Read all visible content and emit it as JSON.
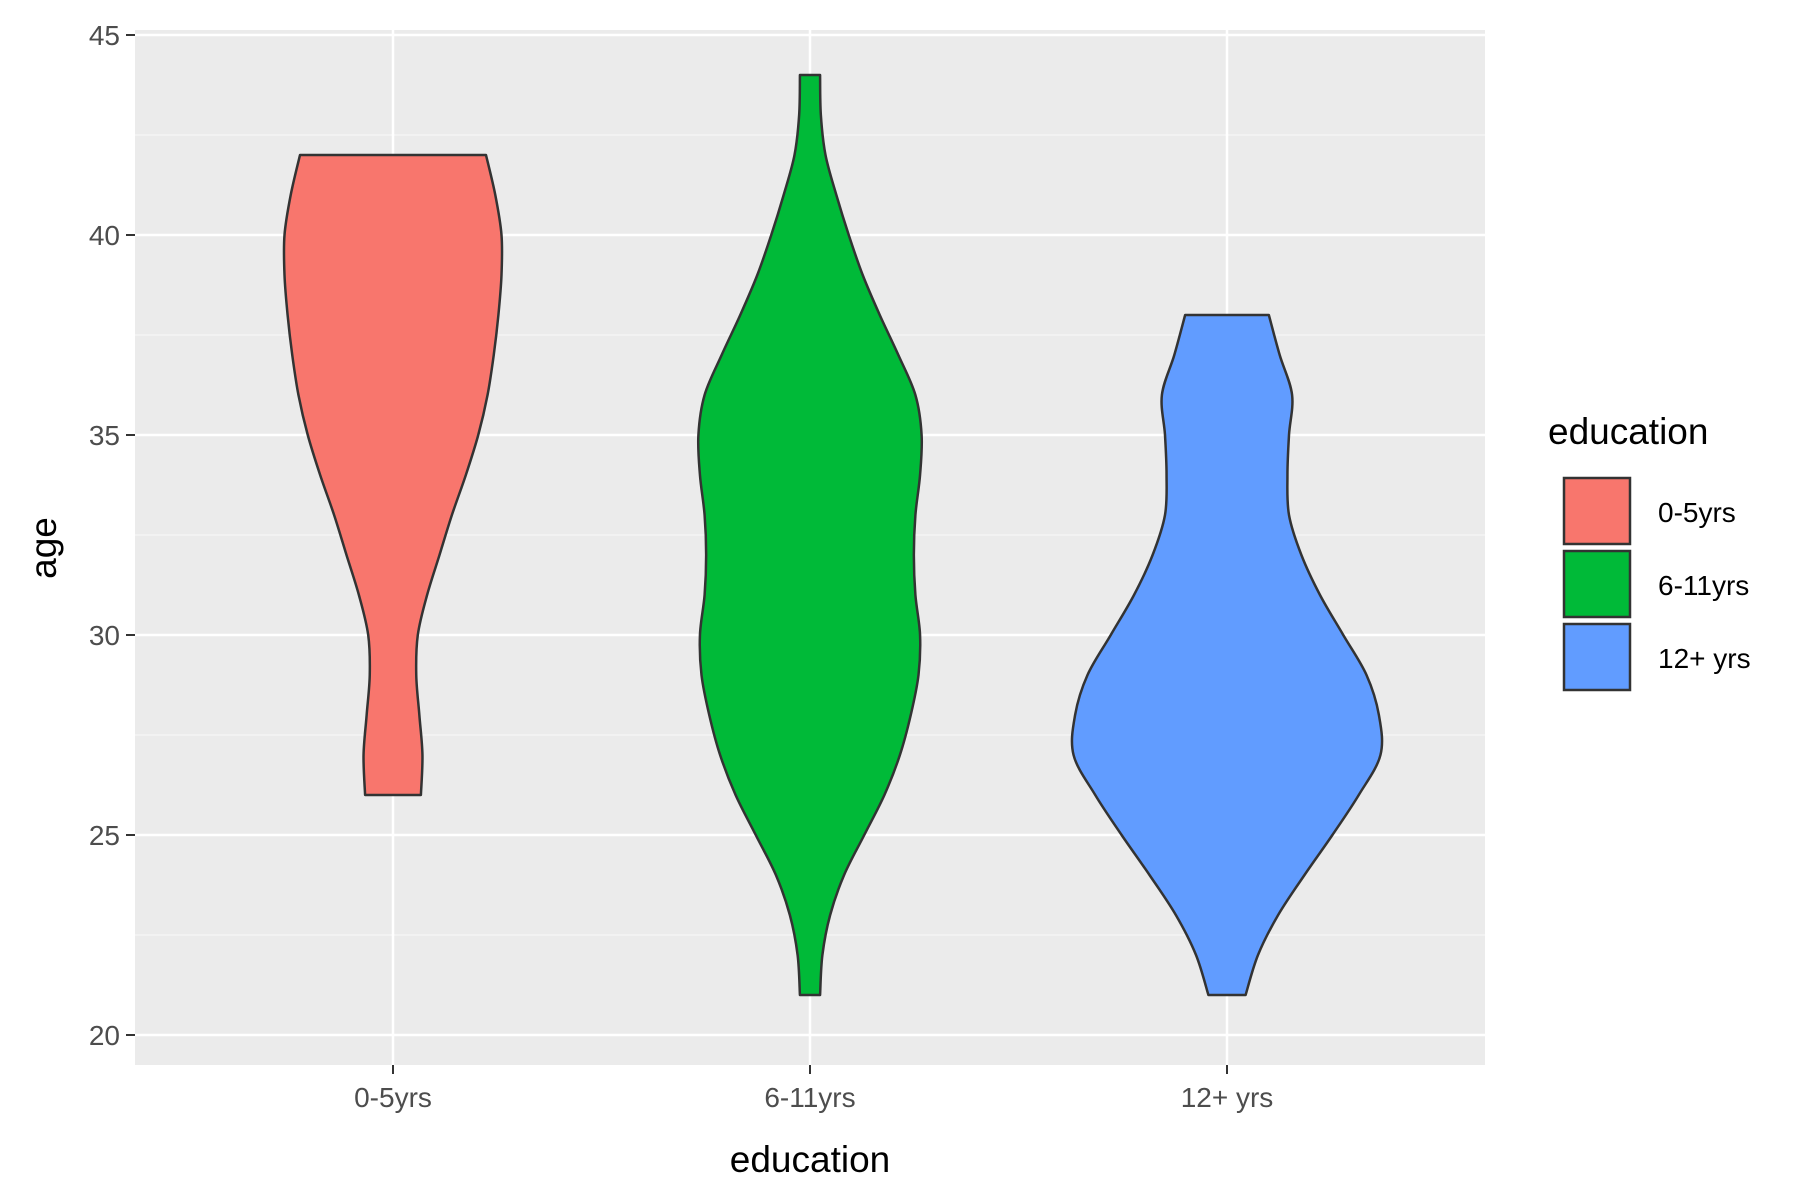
{
  "chart_data": {
    "type": "violin",
    "xlabel": "education",
    "ylabel": "age",
    "ylim": [
      20,
      45
    ],
    "yticks": [
      20,
      25,
      30,
      35,
      40,
      45
    ],
    "categories": [
      "0-5yrs",
      "6-11yrs",
      "12+ yrs"
    ],
    "grid": true,
    "legend": {
      "title": "education",
      "placement": "right",
      "entries": [
        "0-5yrs",
        "6-11yrs",
        "12+ yrs"
      ]
    },
    "series": [
      {
        "category": "0-5yrs",
        "color": "#F8766D",
        "min": 26,
        "max": 42,
        "profile": [
          [
            26,
            0.18
          ],
          [
            27,
            0.19
          ],
          [
            28,
            0.17
          ],
          [
            29,
            0.15
          ],
          [
            30,
            0.16
          ],
          [
            31,
            0.22
          ],
          [
            32,
            0.3
          ],
          [
            33,
            0.38
          ],
          [
            34,
            0.47
          ],
          [
            35,
            0.55
          ],
          [
            36,
            0.61
          ],
          [
            37,
            0.65
          ],
          [
            38,
            0.68
          ],
          [
            39,
            0.7
          ],
          [
            40,
            0.7
          ],
          [
            41,
            0.66
          ],
          [
            42,
            0.6
          ]
        ]
      },
      {
        "category": "6-11yrs",
        "color": "#00BA38",
        "min": 21,
        "max": 44,
        "profile": [
          [
            21,
            0.065
          ],
          [
            22,
            0.08
          ],
          [
            23,
            0.13
          ],
          [
            24,
            0.22
          ],
          [
            25,
            0.35
          ],
          [
            26,
            0.48
          ],
          [
            27,
            0.58
          ],
          [
            28,
            0.65
          ],
          [
            29,
            0.7
          ],
          [
            30,
            0.71
          ],
          [
            31,
            0.68
          ],
          [
            32,
            0.67
          ],
          [
            33,
            0.68
          ],
          [
            34,
            0.71
          ],
          [
            35,
            0.72
          ],
          [
            36,
            0.68
          ],
          [
            37,
            0.57
          ],
          [
            38,
            0.45
          ],
          [
            39,
            0.34
          ],
          [
            40,
            0.25
          ],
          [
            41,
            0.17
          ],
          [
            42,
            0.1
          ],
          [
            43,
            0.07
          ],
          [
            44,
            0.065
          ]
        ]
      },
      {
        "category": "12+ yrs",
        "color": "#619CFF",
        "min": 21,
        "max": 38,
        "profile": [
          [
            21,
            0.12
          ],
          [
            22,
            0.2
          ],
          [
            23,
            0.33
          ],
          [
            24,
            0.5
          ],
          [
            25,
            0.68
          ],
          [
            26,
            0.85
          ],
          [
            27,
            0.99
          ],
          [
            28,
            0.98
          ],
          [
            29,
            0.9
          ],
          [
            30,
            0.75
          ],
          [
            31,
            0.6
          ],
          [
            32,
            0.48
          ],
          [
            33,
            0.4
          ],
          [
            34,
            0.39
          ],
          [
            35,
            0.4
          ],
          [
            36,
            0.42
          ],
          [
            37,
            0.34
          ],
          [
            38,
            0.27
          ]
        ]
      }
    ]
  }
}
